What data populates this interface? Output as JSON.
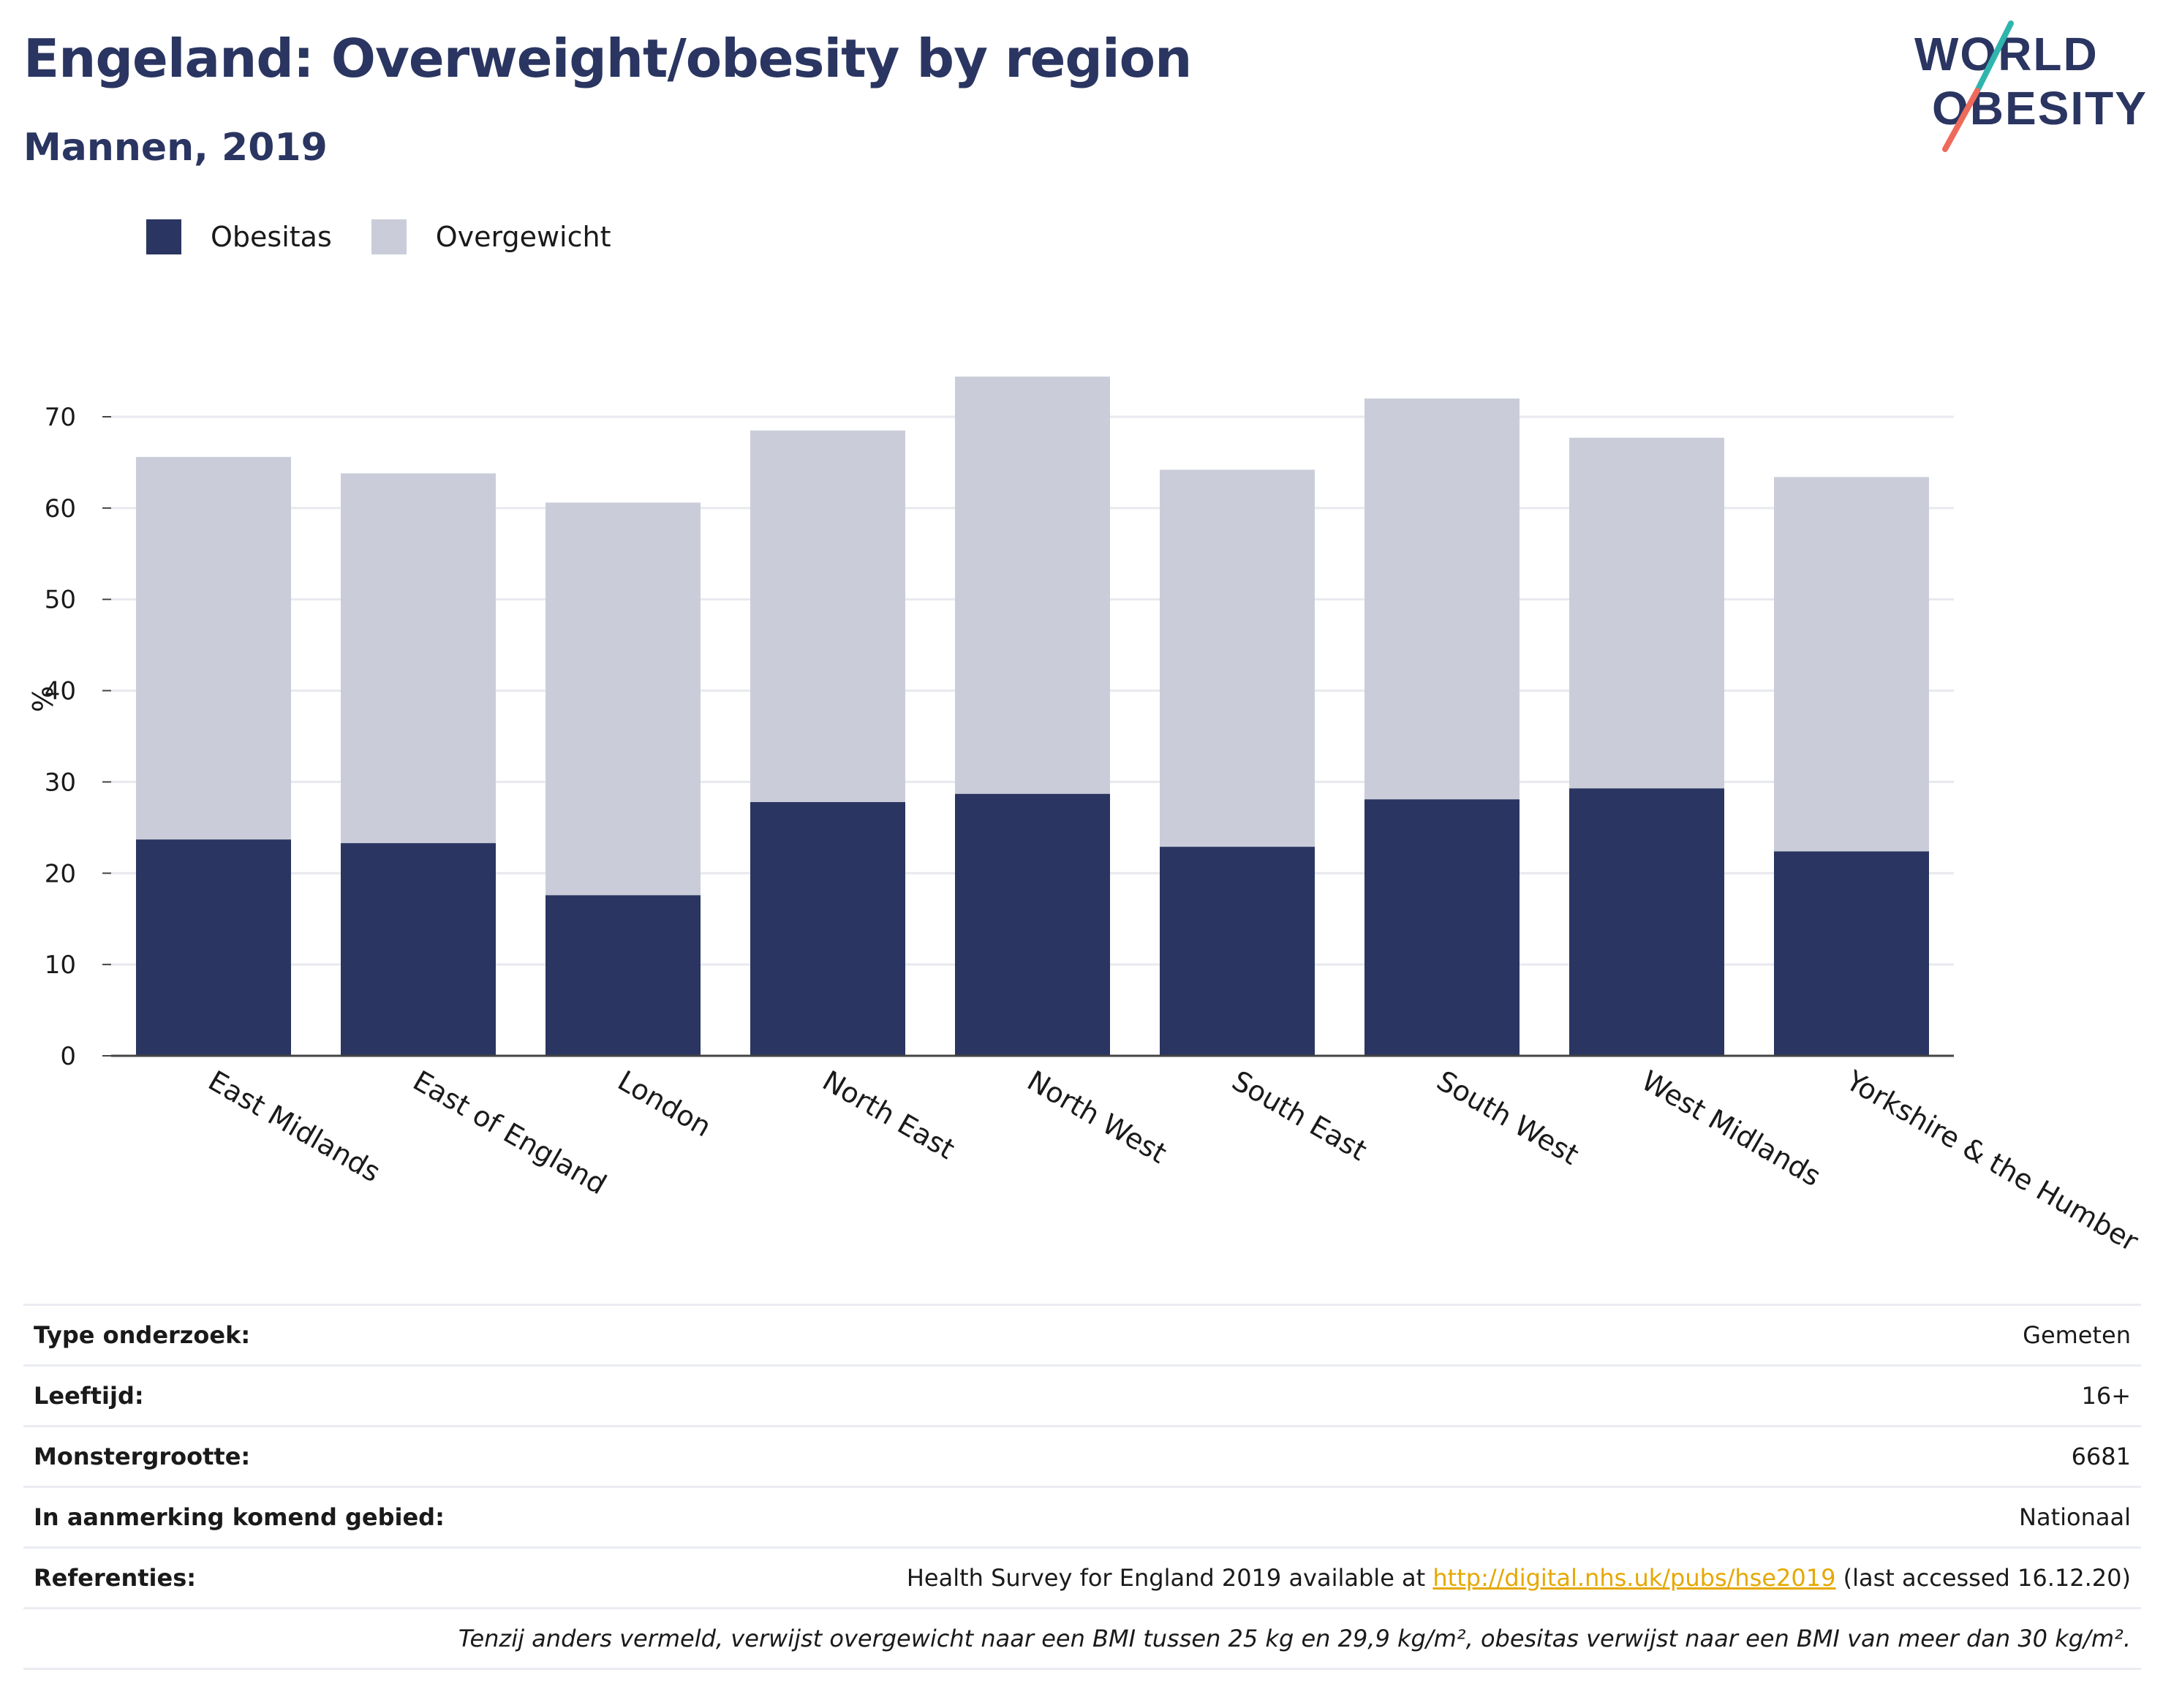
{
  "header": {
    "title": "Engeland: Overweight/obesity by region",
    "subtitle": "Mannen, 2019"
  },
  "logo": {
    "line1": "WORLD",
    "line2": "OBESITY"
  },
  "colors": {
    "obesitas": "#2a3561",
    "overgewicht": "#cacdd9",
    "grid": "#e8e9ee",
    "axis": "#444444",
    "link": "#e5a800",
    "logo_text": "#2a3561",
    "logo_teal": "#2fb5ad",
    "logo_coral": "#ee6a5a"
  },
  "chart_data": {
    "type": "bar",
    "stacked": true,
    "categories": [
      "East Midlands",
      "East of England",
      "London",
      "North East",
      "North West",
      "South East",
      "South West",
      "West Midlands",
      "Yorkshire & the Humber"
    ],
    "series": [
      {
        "name": "Obesitas",
        "values": [
          23.7,
          23.3,
          17.6,
          27.8,
          28.7,
          22.9,
          28.1,
          29.3,
          22.4
        ]
      },
      {
        "name": "Overgewicht",
        "values": [
          41.9,
          40.5,
          43.0,
          40.7,
          45.7,
          41.3,
          43.9,
          38.4,
          41.0
        ]
      }
    ],
    "title": "Engeland: Overweight/obesity by region",
    "subtitle": "Mannen, 2019",
    "xlabel": "",
    "ylabel": "%",
    "ylim": [
      0,
      75
    ],
    "yticks": [
      0,
      10,
      20,
      30,
      40,
      50,
      60,
      70
    ],
    "grid": true,
    "legend": "top-left"
  },
  "info": {
    "type_label": "Type onderzoek:",
    "type_value": "Gemeten",
    "age_label": "Leeftijd:",
    "age_value": "16+",
    "sample_label": "Monstergrootte:",
    "sample_value": "6681",
    "area_label": "In aanmerking komend gebied:",
    "area_value": "Nationaal",
    "ref_label": "Referenties:",
    "ref_prefix": "Health Survey for England 2019 available at ",
    "ref_link": "http://digital.nhs.uk/pubs/hse2019",
    "ref_suffix": " (last accessed 16.12.20)",
    "note": "Tenzij anders vermeld, verwijst overgewicht naar een BMI tussen 25 kg en 29,9 kg/m², obesitas verwijst naar een BMI van meer dan 30 kg/m²."
  }
}
